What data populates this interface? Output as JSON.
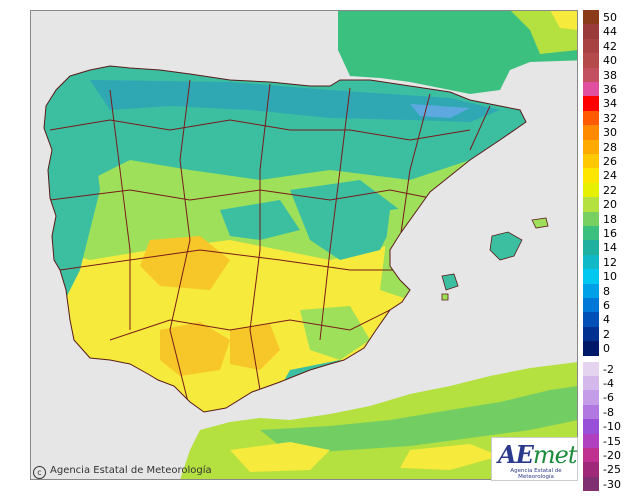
{
  "map": {
    "copyright_text": "Agencia Estatal de Meteorología",
    "logo_word_a": "AE",
    "logo_word_b": "met",
    "logo_subtitle": "Agencia Estatal de Meteorología",
    "colors": {
      "sea": "#e6e6e6",
      "frame": "#888888",
      "land_yellow": "#f6ea3c",
      "land_orange": "#f7c72a",
      "land_green": "#9ee05a",
      "land_teal": "#3bbfa0",
      "land_cyan": "#2fa8b4",
      "border": "#7a1a1a"
    }
  },
  "legend": {
    "items": [
      {
        "label": "50",
        "color": "#8b3a1a"
      },
      {
        "label": "44",
        "color": "#9a3a3a"
      },
      {
        "label": "42",
        "color": "#a84242"
      },
      {
        "label": "40",
        "color": "#b44a4a"
      },
      {
        "label": "38",
        "color": "#c25060"
      },
      {
        "label": "36",
        "color": "#e04fa0"
      },
      {
        "label": "34",
        "color": "#ff0000"
      },
      {
        "label": "32",
        "color": "#ff5a00"
      },
      {
        "label": "30",
        "color": "#ff8a00"
      },
      {
        "label": "28",
        "color": "#ffaa00"
      },
      {
        "label": "26",
        "color": "#ffc800"
      },
      {
        "label": "24",
        "color": "#ffe600"
      },
      {
        "label": "22",
        "color": "#e6f000"
      },
      {
        "label": "20",
        "color": "#b4e040"
      },
      {
        "label": "18",
        "color": "#78d060"
      },
      {
        "label": "16",
        "color": "#3cc080"
      },
      {
        "label": "14",
        "color": "#20b0a0"
      },
      {
        "label": "12",
        "color": "#10b8c8"
      },
      {
        "label": "10",
        "color": "#00c8f0"
      },
      {
        "label": "8",
        "color": "#00a0e8"
      },
      {
        "label": "6",
        "color": "#0078d8"
      },
      {
        "label": "4",
        "color": "#0050b8"
      },
      {
        "label": "2",
        "color": "#003090"
      },
      {
        "label": "0",
        "color": "#001868"
      },
      {
        "label": "-2",
        "color": "#e4d4f0"
      },
      {
        "label": "-4",
        "color": "#d4b8ec"
      },
      {
        "label": "-6",
        "color": "#c49ce8"
      },
      {
        "label": "-8",
        "color": "#b078e0"
      },
      {
        "label": "-10",
        "color": "#9850d8"
      },
      {
        "label": "-15",
        "color": "#b040c0"
      },
      {
        "label": "-20",
        "color": "#c03090"
      },
      {
        "label": "-25",
        "color": "#a02878"
      },
      {
        "label": "-30",
        "color": "#803070"
      }
    ]
  }
}
